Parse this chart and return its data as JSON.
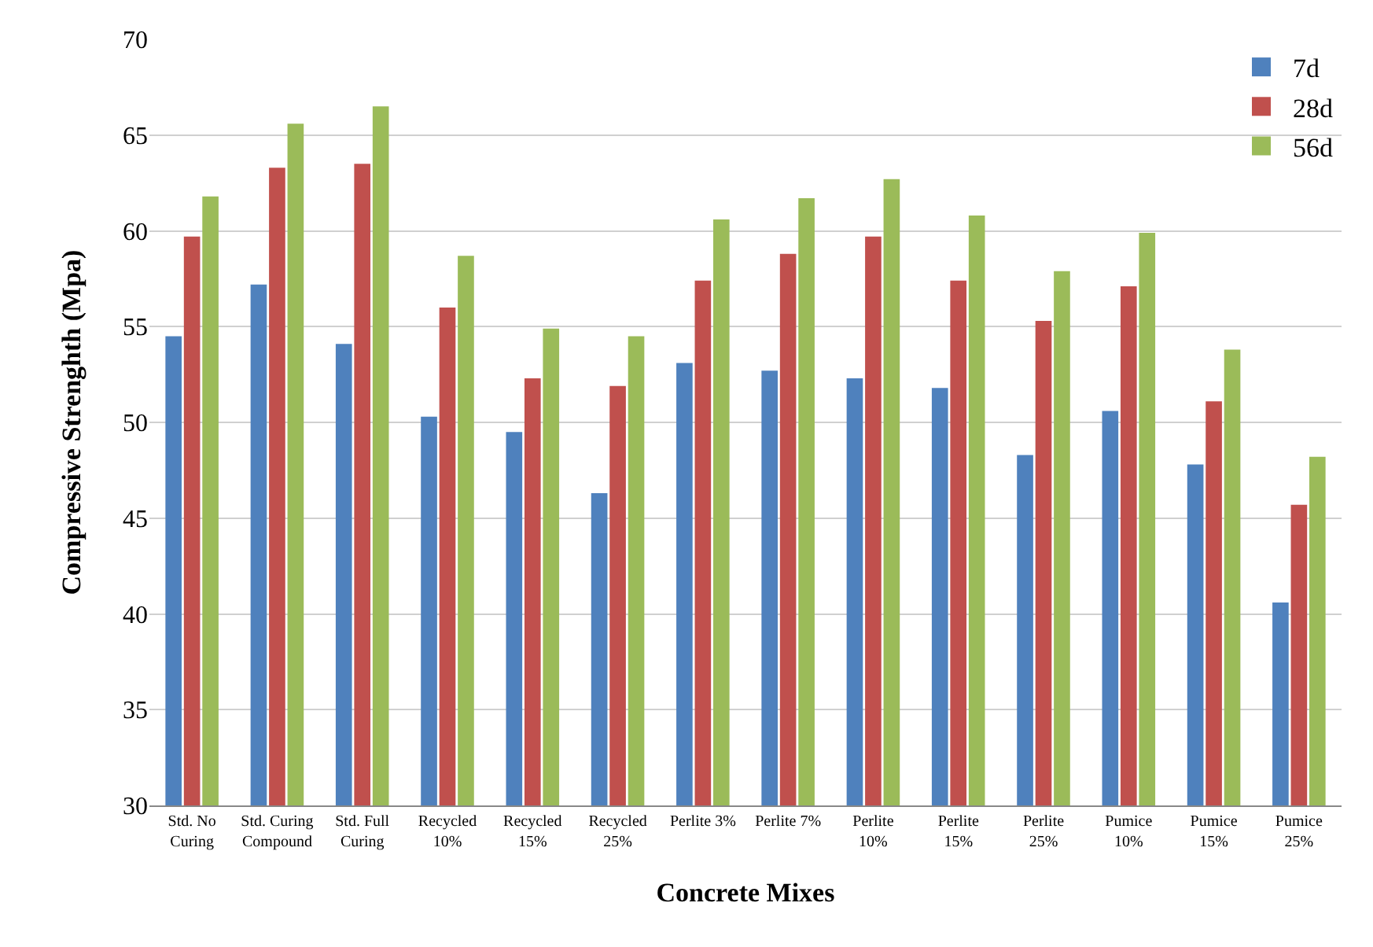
{
  "chart_data": {
    "type": "bar",
    "xlabel": "Concrete Mixes",
    "ylabel": "Compressive Strenghth (Mpa)",
    "categories": [
      "Std. No\nCuring",
      "Std. Curing\nCompound",
      "Std. Full\nCuring",
      "Recycled\n10%",
      "Recycled\n15%",
      "Recycled\n25%",
      "Perlite 3%",
      "Perlite 7%",
      "Perlite\n10%",
      "Perlite\n15%",
      "Perlite\n25%",
      "Pumice\n10%",
      "Pumice\n15%",
      "Pumice\n25%"
    ],
    "series": [
      {
        "name": "7d",
        "color": "#4f81bd",
        "values": [
          54.5,
          57.2,
          54.1,
          50.3,
          49.5,
          46.3,
          53.1,
          52.7,
          52.3,
          51.8,
          48.3,
          50.6,
          47.8,
          40.6
        ]
      },
      {
        "name": "28d",
        "color": "#c0504d",
        "values": [
          59.7,
          63.3,
          63.5,
          56.0,
          52.3,
          51.9,
          57.4,
          58.8,
          59.7,
          57.4,
          55.3,
          57.1,
          51.1,
          45.7
        ]
      },
      {
        "name": "56d",
        "color": "#9bbb59",
        "values": [
          61.8,
          65.6,
          66.5,
          58.7,
          54.9,
          54.5,
          60.6,
          61.7,
          62.7,
          60.8,
          57.9,
          59.9,
          53.8,
          48.2
        ]
      }
    ],
    "ylim": [
      30,
      70
    ],
    "yticks": [
      30,
      35,
      40,
      45,
      50,
      55,
      60,
      65,
      70
    ],
    "grid": "y",
    "legend": "top right"
  }
}
